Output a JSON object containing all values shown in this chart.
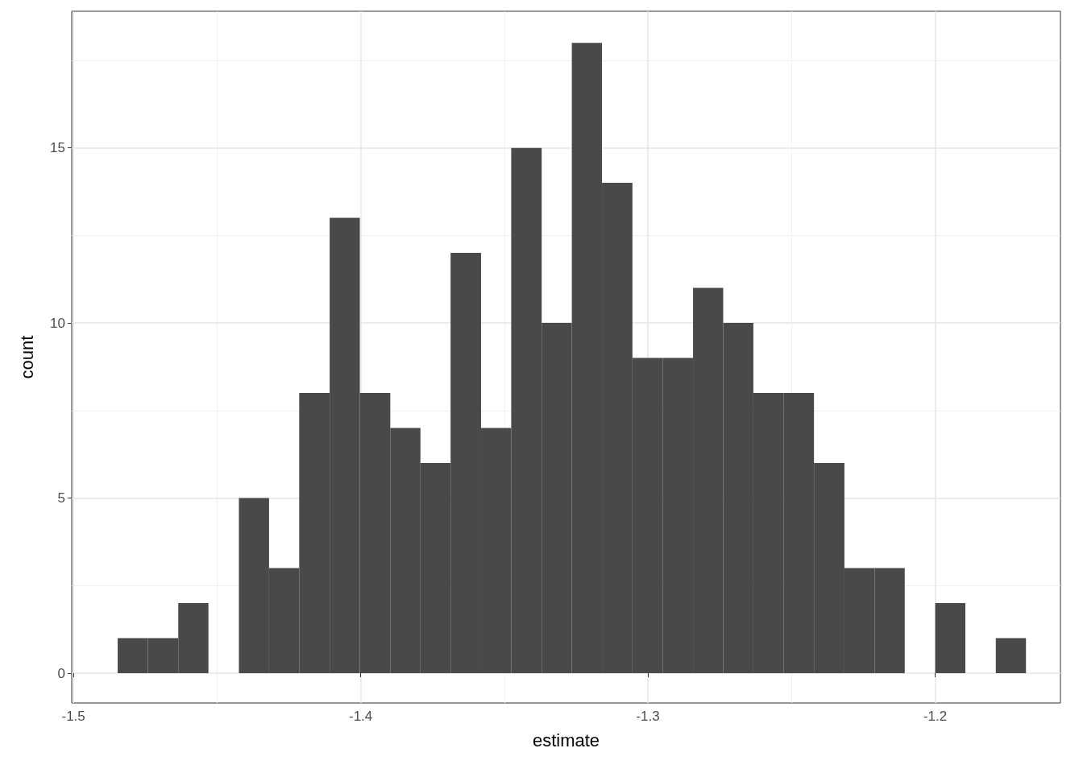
{
  "chart_data": {
    "type": "histogram",
    "xlabel": "estimate",
    "ylabel": "count",
    "color": "#494949",
    "bins": [
      -1.4846,
      -1.4741,
      -1.4635,
      -1.453,
      -1.4424,
      -1.4319,
      -1.4214,
      -1.4108,
      -1.4003,
      -1.3897,
      -1.3792,
      -1.3687,
      -1.3581,
      -1.3476,
      -1.337,
      -1.3265,
      -1.316,
      -1.3054,
      -1.2949,
      -1.2843,
      -1.2738,
      -1.2633,
      -1.2527,
      -1.2422,
      -1.2316,
      -1.2211,
      -1.2106,
      -1.2,
      -1.1895,
      -1.1789,
      -1.1684
    ],
    "values": [
      1,
      1,
      2,
      0,
      5,
      3,
      8,
      13,
      8,
      7,
      6,
      12,
      7,
      15,
      10,
      18,
      14,
      9,
      9,
      11,
      10,
      8,
      8,
      6,
      3,
      3,
      0,
      2,
      0,
      1
    ],
    "xlim": [
      -1.5006,
      -1.1564
    ],
    "xticks": [
      -1.5,
      -1.4,
      -1.3,
      -1.2
    ],
    "ylim": [
      -0.85,
      18.9
    ],
    "yticks": [
      0,
      5,
      10,
      15
    ],
    "grid": true
  }
}
